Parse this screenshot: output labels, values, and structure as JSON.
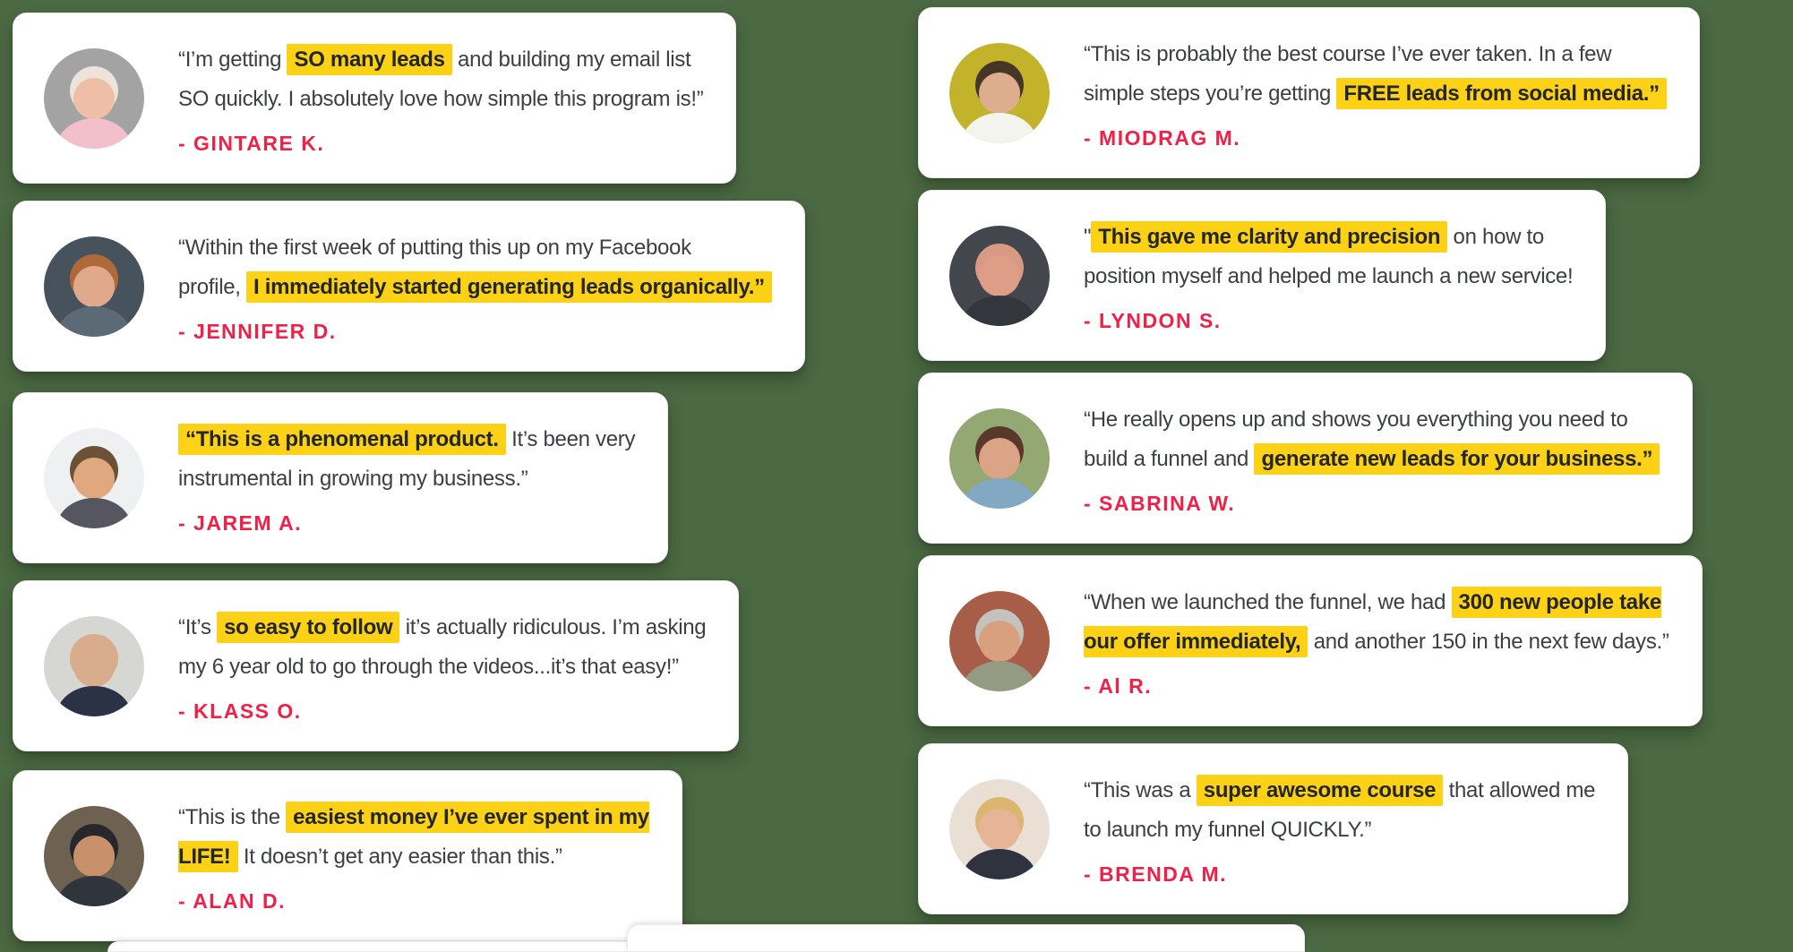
{
  "colors": {
    "background": "#4b6943",
    "card": "#ffffff",
    "highlight": "#fcd116",
    "attribution_red": "#ee2148",
    "quote_text": "#3b3f44"
  },
  "testimonials": [
    {
      "id": "gintare",
      "column": "left",
      "attribution": "- GINTARE K.",
      "avatar_colors": {
        "background": "#a3a3a3",
        "hair": "#ece4da",
        "skin": "#eebfa6",
        "shirt": "#f3bfca"
      },
      "segments": [
        {
          "text": "“I’m getting ",
          "highlight": false
        },
        {
          "text": "SO many leads",
          "highlight": true
        },
        {
          "text": " and building my email list\nSO quickly. I absolutely love how simple this program is!”",
          "highlight": false
        }
      ]
    },
    {
      "id": "jennifer",
      "column": "left",
      "attribution": "- JENNIFER D.",
      "avatar_colors": {
        "background": "#46525c",
        "hair": "#b06a3a",
        "skin": "#e0a98c",
        "shirt": "#5b6a74"
      },
      "segments": [
        {
          "text": "“Within the first week of putting this up on my Facebook\nprofile, ",
          "highlight": false
        },
        {
          "text": "I immediately started generating leads organically.”",
          "highlight": true
        }
      ]
    },
    {
      "id": "jarem",
      "column": "left",
      "attribution": "- JAREM A.",
      "avatar_colors": {
        "background": "#eef0f2",
        "hair": "#6b5236",
        "skin": "#dfa87e",
        "shirt": "#565660"
      },
      "segments": [
        {
          "text": "“This is a phenomenal product.",
          "highlight": true
        },
        {
          "text": " It’s been very\ninstrumental in growing my business.”",
          "highlight": false
        }
      ]
    },
    {
      "id": "klass",
      "column": "left",
      "attribution": "- KLASS O.",
      "avatar_colors": {
        "background": "#d6d6d2",
        "hair": "#d8ac8c",
        "skin": "#d8ac8c",
        "shirt": "#2c3246"
      },
      "segments": [
        {
          "text": "“It’s ",
          "highlight": false
        },
        {
          "text": "so easy to follow",
          "highlight": true
        },
        {
          "text": " it’s actually ridiculous. I’m asking\nmy 6 year old to go through the videos...it’s that easy!”",
          "highlight": false
        }
      ]
    },
    {
      "id": "alan",
      "column": "left",
      "attribution": "- ALAN D.",
      "avatar_colors": {
        "background": "#6f6152",
        "hair": "#26282c",
        "skin": "#c9916b",
        "shirt": "#30343c"
      },
      "segments": [
        {
          "text": "“This is the ",
          "highlight": false
        },
        {
          "text": "easiest money I’ve ever spent in my\nLIFE!",
          "highlight": true
        },
        {
          "text": " It doesn’t get any easier than this.”",
          "highlight": false
        }
      ]
    },
    {
      "id": "miodrag",
      "column": "right",
      "attribution": "- MIODRAG M.",
      "avatar_colors": {
        "background": "#c3b32a",
        "hair": "#463625",
        "skin": "#ddae8d",
        "shirt": "#f4f4ef"
      },
      "segments": [
        {
          "text": "“This is probably the best course I’ve ever taken. In a few\nsimple steps you’re getting ",
          "highlight": false
        },
        {
          "text": "FREE leads from social media.”",
          "highlight": true
        }
      ]
    },
    {
      "id": "lyndon",
      "column": "right",
      "attribution": "- LYNDON S.",
      "avatar_colors": {
        "background": "#43464c",
        "hair": "#d89a82",
        "skin": "#dd9d86",
        "shirt": "#33363c"
      },
      "segments": [
        {
          "text": "\"",
          "highlight": false
        },
        {
          "text": "This gave me clarity and precision",
          "highlight": true
        },
        {
          "text": " on how to\nposition myself and helped me launch a new service!",
          "highlight": false
        }
      ]
    },
    {
      "id": "sabrina",
      "column": "right",
      "attribution": "- SABRINA W.",
      "avatar_colors": {
        "background": "#93a873",
        "hair": "#59382a",
        "skin": "#dca486",
        "shirt": "#82a8c4"
      },
      "segments": [
        {
          "text": "“He really opens up and shows you everything you need to\nbuild a funnel and ",
          "highlight": false
        },
        {
          "text": "generate new leads for your business.”",
          "highlight": true
        }
      ]
    },
    {
      "id": "al",
      "column": "right",
      "attribution": "- Al R.",
      "avatar_colors": {
        "background": "#a75d47",
        "hair": "#c2c2be",
        "skin": "#d9a080",
        "shirt": "#939b82"
      },
      "segments": [
        {
          "text": "“When we launched the funnel, we had ",
          "highlight": false
        },
        {
          "text": "300 new people take\nour offer immediately,",
          "highlight": true
        },
        {
          "text": " and another 150 in the next few days.”",
          "highlight": false
        }
      ]
    },
    {
      "id": "brenda",
      "column": "right",
      "attribution": "- BRENDA M.",
      "avatar_colors": {
        "background": "#e9dfd4",
        "hair": "#dcb66e",
        "skin": "#e6b597",
        "shirt": "#2f3340"
      },
      "segments": [
        {
          "text": "“This was a ",
          "highlight": false
        },
        {
          "text": "super awesome course",
          "highlight": true
        },
        {
          "text": " that allowed me\nto launch my funnel QUICKLY.”",
          "highlight": false
        }
      ]
    }
  ]
}
